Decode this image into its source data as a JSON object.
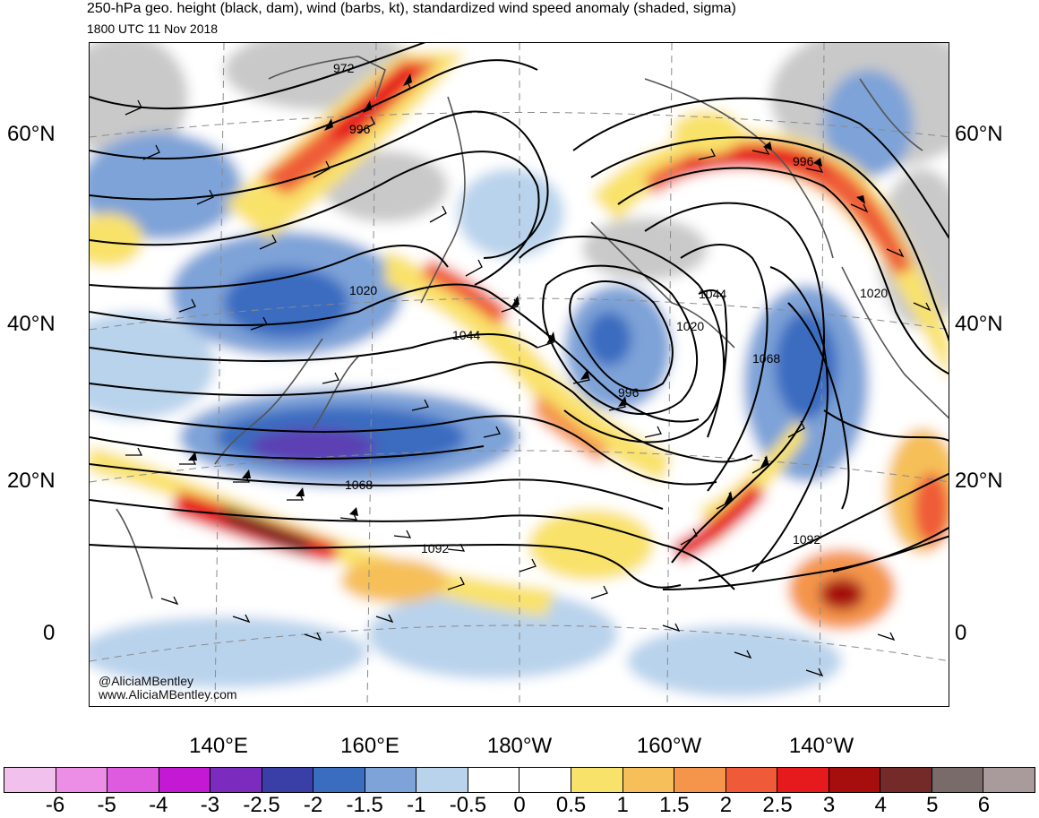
{
  "title": "250-hPa geo. height (black, dam), wind (barbs, kt), standardized wind speed anomaly (shaded, sigma)",
  "subtitle": "1800 UTC 11 Nov 2018",
  "credits": [
    "@AliciaMBentley",
    "www.AliciaMBentley.com"
  ],
  "lat_labels": [
    "60°N",
    "40°N",
    "20°N",
    "0"
  ],
  "lon_labels": [
    "140°E",
    "160°E",
    "180°W",
    "160°W",
    "140°W"
  ],
  "contour_labels": [
    "972",
    "996",
    "1020",
    "1044",
    "1068",
    "1092",
    "996",
    "1020",
    "1044",
    "996",
    "1020",
    "1068",
    "1092"
  ],
  "colorbar": {
    "colors": [
      "#f1c0ec",
      "#ec8ee6",
      "#de5ade",
      "#c318d4",
      "#7b2bbd",
      "#3a3fa8",
      "#3a6cc0",
      "#7ea3d8",
      "#b9d3ec",
      "#ffffff",
      "#ffffff",
      "#f9e26a",
      "#f6bf59",
      "#f4954b",
      "#ef5b39",
      "#e6191c",
      "#a60e0e",
      "#732a28",
      "#7a6b6b",
      "#a99b9b"
    ],
    "labels": [
      "-6",
      "-5",
      "-4",
      "-3",
      "-2.5",
      "-2",
      "-1.5",
      "-1",
      "-0.5",
      "0",
      "0.5",
      "1",
      "1.5",
      "2",
      "2.5",
      "3",
      "4",
      "5",
      "6"
    ]
  }
}
